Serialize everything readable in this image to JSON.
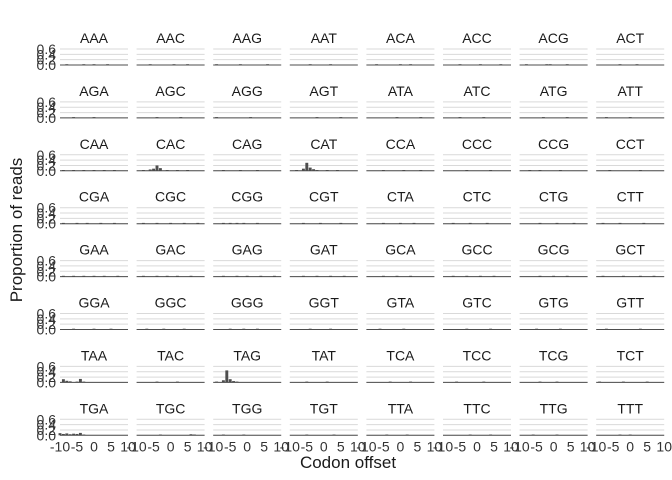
{
  "chart_data": {
    "type": "bar",
    "layout": "faceted small multiples, 8 columns x 8 rows",
    "xlabel": "Codon offset",
    "ylabel": "Proportion of reads",
    "ylim": [
      0,
      0.6
    ],
    "y_ticks": [
      "0.0",
      "0.2",
      "0.4",
      "0.6"
    ],
    "xlim": [
      -10,
      10
    ],
    "x_ticks": [
      "-10",
      "-5",
      "0",
      "5",
      "10"
    ],
    "grid": true,
    "bar_color": "#4d4d4d",
    "grid_color": "#d9d9d9",
    "facets": [
      {
        "codon": "AAA",
        "bars": [
          [
            -8,
            0.008
          ],
          [
            -3,
            0.015
          ],
          [
            0,
            0.006
          ],
          [
            4,
            0.01
          ]
        ]
      },
      {
        "codon": "AAC",
        "bars": [
          [
            -6,
            0.006
          ],
          [
            1,
            0.012
          ],
          [
            5,
            0.008
          ]
        ]
      },
      {
        "codon": "AAG",
        "bars": [
          [
            -9,
            0.01
          ],
          [
            -2,
            0.008
          ],
          [
            6,
            0.006
          ]
        ]
      },
      {
        "codon": "AAT",
        "bars": [
          [
            -4,
            0.008
          ],
          [
            2,
            0.01
          ]
        ]
      },
      {
        "codon": "ACA",
        "bars": [
          [
            -7,
            0.006
          ],
          [
            0,
            0.012
          ],
          [
            3,
            0.008
          ]
        ]
      },
      {
        "codon": "ACC",
        "bars": [
          [
            -5,
            0.008
          ],
          [
            1,
            0.006
          ],
          [
            7,
            0.01
          ]
        ]
      },
      {
        "codon": "ACG",
        "bars": [
          [
            -8,
            0.006
          ],
          [
            -2,
            0.02
          ],
          [
            -1,
            0.018
          ],
          [
            4,
            0.006
          ]
        ]
      },
      {
        "codon": "ACT",
        "bars": [
          [
            -3,
            0.008
          ],
          [
            2,
            0.015
          ]
        ]
      },
      {
        "codon": "AGA",
        "bars": [
          [
            -6,
            0.008
          ],
          [
            0,
            0.006
          ]
        ]
      },
      {
        "codon": "AGC",
        "bars": [
          [
            -4,
            0.006
          ],
          [
            3,
            0.008
          ]
        ]
      },
      {
        "codon": "AGG",
        "bars": [
          [
            -9,
            0.006
          ],
          [
            1,
            0.006
          ]
        ]
      },
      {
        "codon": "AGT",
        "bars": [
          [
            -2,
            0.012
          ],
          [
            5,
            0.006
          ]
        ]
      },
      {
        "codon": "ATA",
        "bars": [
          [
            -1,
            0.015
          ],
          [
            6,
            0.006
          ]
        ]
      },
      {
        "codon": "ATC",
        "bars": [
          [
            -5,
            0.006
          ],
          [
            2,
            0.01
          ]
        ]
      },
      {
        "codon": "ATG",
        "bars": [
          [
            -3,
            0.006
          ],
          [
            4,
            0.01
          ]
        ]
      },
      {
        "codon": "ATT",
        "bars": [
          [
            -7,
            0.006
          ],
          [
            0,
            0.006
          ]
        ]
      },
      {
        "codon": "CAA",
        "bars": [
          [
            -9,
            0.015
          ],
          [
            -6,
            0.02
          ],
          [
            -3,
            0.018
          ],
          [
            0,
            0.015
          ],
          [
            3,
            0.02
          ],
          [
            6,
            0.015
          ]
        ]
      },
      {
        "codon": "CAC",
        "bars": [
          [
            -8,
            0.02
          ],
          [
            -6,
            0.05
          ],
          [
            -5,
            0.08
          ],
          [
            -4,
            0.2
          ],
          [
            -3,
            0.1
          ],
          [
            -1,
            0.03
          ],
          [
            2,
            0.02
          ],
          [
            5,
            0.015
          ]
        ]
      },
      {
        "codon": "CAG",
        "bars": [
          [
            -7,
            0.012
          ],
          [
            -2,
            0.015
          ],
          [
            3,
            0.01
          ]
        ]
      },
      {
        "codon": "CAT",
        "bars": [
          [
            -8,
            0.03
          ],
          [
            -6,
            0.08
          ],
          [
            -5,
            0.3
          ],
          [
            -4,
            0.12
          ],
          [
            -3,
            0.06
          ],
          [
            -2,
            0.03
          ],
          [
            1,
            0.02
          ],
          [
            4,
            0.015
          ]
        ]
      },
      {
        "codon": "CCA",
        "bars": [
          [
            -5,
            0.012
          ],
          [
            1,
            0.01
          ],
          [
            6,
            0.008
          ]
        ]
      },
      {
        "codon": "CCC",
        "bars": [
          [
            -3,
            0.008
          ],
          [
            4,
            0.01
          ]
        ]
      },
      {
        "codon": "CCG",
        "bars": [
          [
            -7,
            0.012
          ],
          [
            -4,
            0.025
          ],
          [
            2,
            0.01
          ]
        ]
      },
      {
        "codon": "CCT",
        "bars": [
          [
            -6,
            0.008
          ],
          [
            3,
            0.008
          ]
        ]
      },
      {
        "codon": "CGA",
        "bars": [
          [
            -9,
            0.012
          ],
          [
            -5,
            0.02
          ],
          [
            -2,
            0.015
          ],
          [
            2,
            0.02
          ],
          [
            6,
            0.012
          ]
        ]
      },
      {
        "codon": "CGC",
        "bars": [
          [
            -8,
            0.012
          ],
          [
            -4,
            0.015
          ],
          [
            0,
            0.018
          ],
          [
            4,
            0.012
          ],
          [
            8,
            0.01
          ]
        ]
      },
      {
        "codon": "CGG",
        "bars": [
          [
            -7,
            0.012
          ],
          [
            -5,
            0.02
          ],
          [
            -3,
            0.03
          ],
          [
            -1,
            0.02
          ],
          [
            3,
            0.015
          ]
        ]
      },
      {
        "codon": "CGT",
        "bars": [
          [
            -6,
            0.012
          ],
          [
            -1,
            0.015
          ],
          [
            5,
            0.012
          ]
        ]
      },
      {
        "codon": "CTA",
        "bars": [
          [
            -5,
            0.012
          ],
          [
            0,
            0.01
          ],
          [
            4,
            0.012
          ]
        ]
      },
      {
        "codon": "CTC",
        "bars": [
          [
            -7,
            0.012
          ],
          [
            -2,
            0.01
          ],
          [
            3,
            0.015
          ]
        ]
      },
      {
        "codon": "CTG",
        "bars": [
          [
            -4,
            0.012
          ],
          [
            1,
            0.015
          ],
          [
            6,
            0.01
          ]
        ]
      },
      {
        "codon": "CTT",
        "bars": [
          [
            -8,
            0.01
          ],
          [
            -3,
            0.012
          ],
          [
            4,
            0.012
          ]
        ]
      },
      {
        "codon": "GAA",
        "bars": [
          [
            -9,
            0.02
          ],
          [
            -6,
            0.025
          ],
          [
            -3,
            0.018
          ],
          [
            0,
            0.02
          ],
          [
            3,
            0.025
          ],
          [
            7,
            0.02
          ]
        ]
      },
      {
        "codon": "GAC",
        "bars": [
          [
            -8,
            0.015
          ],
          [
            -4,
            0.02
          ],
          [
            -1,
            0.015
          ],
          [
            2,
            0.02
          ],
          [
            6,
            0.015
          ]
        ]
      },
      {
        "codon": "GAG",
        "bars": [
          [
            -7,
            0.02
          ],
          [
            -3,
            0.025
          ],
          [
            0,
            0.02
          ],
          [
            4,
            0.02
          ],
          [
            8,
            0.015
          ]
        ]
      },
      {
        "codon": "GAT",
        "bars": [
          [
            -6,
            0.015
          ],
          [
            -2,
            0.02
          ],
          [
            2,
            0.015
          ],
          [
            6,
            0.02
          ]
        ]
      },
      {
        "codon": "GCA",
        "bars": [
          [
            -5,
            0.015
          ],
          [
            -1,
            0.02
          ],
          [
            3,
            0.015
          ]
        ]
      },
      {
        "codon": "GCC",
        "bars": [
          [
            -7,
            0.015
          ],
          [
            -3,
            0.02
          ],
          [
            1,
            0.018
          ],
          [
            5,
            0.015
          ]
        ]
      },
      {
        "codon": "GCG",
        "bars": [
          [
            -4,
            0.012
          ],
          [
            0,
            0.015
          ],
          [
            4,
            0.012
          ]
        ]
      },
      {
        "codon": "GCT",
        "bars": [
          [
            -8,
            0.015
          ],
          [
            -2,
            0.02
          ],
          [
            3,
            0.015
          ],
          [
            7,
            0.012
          ]
        ]
      },
      {
        "codon": "GGA",
        "bars": [
          [
            -6,
            0.01
          ],
          [
            0,
            0.012
          ],
          [
            5,
            0.008
          ]
        ]
      },
      {
        "codon": "GGC",
        "bars": [
          [
            -7,
            0.008
          ],
          [
            -2,
            0.012
          ],
          [
            4,
            0.008
          ]
        ]
      },
      {
        "codon": "GGG",
        "bars": [
          [
            -5,
            0.012
          ],
          [
            -1,
            0.01
          ],
          [
            3,
            0.012
          ]
        ]
      },
      {
        "codon": "GGT",
        "bars": [
          [
            -4,
            0.01
          ],
          [
            2,
            0.008
          ]
        ]
      },
      {
        "codon": "GTA",
        "bars": [
          [
            -6,
            0.01
          ],
          [
            1,
            0.008
          ]
        ]
      },
      {
        "codon": "GTC",
        "bars": [
          [
            -3,
            0.008
          ],
          [
            4,
            0.01
          ]
        ]
      },
      {
        "codon": "GTG",
        "bars": [
          [
            -5,
            0.01
          ],
          [
            2,
            0.012
          ]
        ]
      },
      {
        "codon": "GTT",
        "bars": [
          [
            -7,
            0.01
          ],
          [
            3,
            0.008
          ]
        ]
      },
      {
        "codon": "TAA",
        "bars": [
          [
            -9,
            0.12
          ],
          [
            -8,
            0.06
          ],
          [
            -7,
            0.04
          ],
          [
            -5,
            0.03
          ],
          [
            -4,
            0.13
          ],
          [
            -3,
            0.02
          ]
        ]
      },
      {
        "codon": "TAC",
        "bars": [
          [
            -4,
            0.006
          ],
          [
            2,
            0.006
          ]
        ]
      },
      {
        "codon": "TAG",
        "bars": [
          [
            -9,
            0.03
          ],
          [
            -7,
            0.08
          ],
          [
            -6,
            0.45
          ],
          [
            -5,
            0.12
          ],
          [
            -4,
            0.05
          ],
          [
            -3,
            0.02
          ]
        ]
      },
      {
        "codon": "TAT",
        "bars": [
          [
            -5,
            0.008
          ],
          [
            1,
            0.006
          ]
        ]
      },
      {
        "codon": "TCA",
        "bars": [
          [
            -3,
            0.01
          ],
          [
            3,
            0.008
          ]
        ]
      },
      {
        "codon": "TCC",
        "bars": [
          [
            -6,
            0.006
          ],
          [
            2,
            0.006
          ]
        ]
      },
      {
        "codon": "TCG",
        "bars": [
          [
            -4,
            0.006
          ],
          [
            1,
            0.008
          ]
        ]
      },
      {
        "codon": "TCT",
        "bars": [
          [
            -9,
            0.02
          ],
          [
            -2,
            0.008
          ],
          [
            5,
            0.006
          ]
        ]
      },
      {
        "codon": "TGA",
        "bars": [
          [
            -10,
            0.08
          ],
          [
            -9,
            0.05
          ],
          [
            -8,
            0.07
          ],
          [
            -7,
            0.04
          ],
          [
            -6,
            0.06
          ],
          [
            -5,
            0.05
          ],
          [
            -4,
            0.09
          ],
          [
            -3,
            0.03
          ]
        ]
      },
      {
        "codon": "TGC",
        "bars": [
          [
            -3,
            0.006
          ],
          [
            6,
            0.04
          ],
          [
            7,
            0.012
          ]
        ]
      },
      {
        "codon": "TGG",
        "bars": [
          [
            -7,
            0.006
          ],
          [
            -1,
            0.006
          ]
        ]
      },
      {
        "codon": "TGT",
        "bars": [
          [
            -5,
            0.006
          ],
          [
            3,
            0.006
          ]
        ]
      },
      {
        "codon": "TTA",
        "bars": [
          [
            -4,
            0.006
          ],
          [
            2,
            0.006
          ]
        ]
      },
      {
        "codon": "TTC",
        "bars": [
          [
            -2,
            0.006
          ],
          [
            4,
            0.006
          ]
        ]
      },
      {
        "codon": "TTG",
        "bars": [
          [
            -6,
            0.006
          ],
          [
            1,
            0.006
          ]
        ]
      },
      {
        "codon": "TTT",
        "bars": [
          [
            -3,
            0.006
          ],
          [
            0,
            0.008
          ]
        ]
      }
    ]
  }
}
